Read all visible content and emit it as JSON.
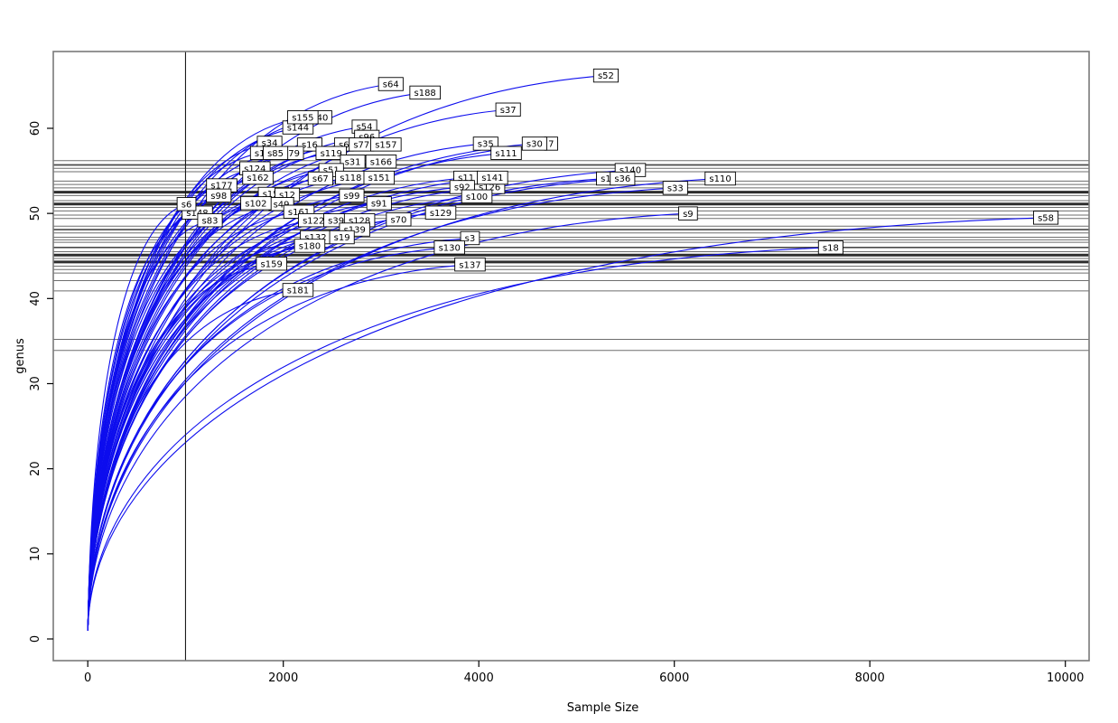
{
  "figure": {
    "background": "#ffffff",
    "curve_color": "#0d0dee",
    "hline_color_light": "#6e6e6e",
    "hline_color_mid": "#4a4a4a",
    "hline_color_dark": "#2e2e2e",
    "box_color": "#7a7a7a",
    "vline_color": "#1a1a1a",
    "label_box_fill": "#ffffff",
    "label_box_border": "#000000"
  },
  "chart_data": {
    "type": "line",
    "title": "",
    "xlabel": "Sample Size",
    "ylabel": "genus",
    "x_ticks": [
      0,
      2000,
      4000,
      6000,
      8000,
      10000
    ],
    "y_ticks": [
      0,
      10,
      20,
      30,
      40,
      50,
      60
    ],
    "xlim": [
      -420,
      10270
    ],
    "ylim": [
      -2.5,
      69
    ],
    "grid": false,
    "legend": "none",
    "vline_x": 1000,
    "curve_start": {
      "x": 1,
      "y": 1
    },
    "note": "Rarefaction curves; each curve starts at (1,1) and ends at its sample size with a boxed sample label. Horizontal gray lines mark rarefied richness at sample size 1000.",
    "hlines": [
      {
        "y": 56.2,
        "w": 1
      },
      {
        "y": 55.7,
        "w": 2
      },
      {
        "y": 55.3,
        "w": 1
      },
      {
        "y": 54.9,
        "w": 1
      },
      {
        "y": 53.8,
        "w": 1
      },
      {
        "y": 53.4,
        "w": 1
      },
      {
        "y": 53.0,
        "w": 1
      },
      {
        "y": 52.5,
        "w": 3
      },
      {
        "y": 52.1,
        "w": 1
      },
      {
        "y": 51.5,
        "w": 1
      },
      {
        "y": 51.1,
        "w": 3
      },
      {
        "y": 50.7,
        "w": 1
      },
      {
        "y": 50.3,
        "w": 1
      },
      {
        "y": 49.8,
        "w": 1
      },
      {
        "y": 49.4,
        "w": 1
      },
      {
        "y": 48.5,
        "w": 1
      },
      {
        "y": 48.1,
        "w": 2
      },
      {
        "y": 47.7,
        "w": 1
      },
      {
        "y": 47.2,
        "w": 1
      },
      {
        "y": 46.9,
        "w": 1
      },
      {
        "y": 46.6,
        "w": 1
      },
      {
        "y": 46.0,
        "w": 2
      },
      {
        "y": 45.5,
        "w": 1
      },
      {
        "y": 45.1,
        "w": 3
      },
      {
        "y": 44.7,
        "w": 1
      },
      {
        "y": 44.3,
        "w": 3
      },
      {
        "y": 43.8,
        "w": 1
      },
      {
        "y": 43.4,
        "w": 1
      },
      {
        "y": 43.0,
        "w": 1
      },
      {
        "y": 42.1,
        "w": 1
      },
      {
        "y": 40.9,
        "w": 1
      },
      {
        "y": 35.2,
        "w": 1
      },
      {
        "y": 33.9,
        "w": 1
      }
    ],
    "samples": [
      {
        "label": "s144",
        "x": 2150,
        "y": 60.1
      },
      {
        "label": "40",
        "x": 2400,
        "y": 61.3
      },
      {
        "label": "s155",
        "x": 2200,
        "y": 61.3
      },
      {
        "label": "s54",
        "x": 2830,
        "y": 60.2
      },
      {
        "label": "s96",
        "x": 2855,
        "y": 59.0
      },
      {
        "label": "s34",
        "x": 1860,
        "y": 58.3
      },
      {
        "label": "s16",
        "x": 2270,
        "y": 58.1
      },
      {
        "label": "s6",
        "x": 2620,
        "y": 58.1
      },
      {
        "label": "s77",
        "x": 2800,
        "y": 58.1
      },
      {
        "label": "s157",
        "x": 3050,
        "y": 58.1
      },
      {
        "label": "7",
        "x": 4740,
        "y": 58.2
      },
      {
        "label": "s30",
        "x": 4570,
        "y": 58.2
      },
      {
        "label": "s35",
        "x": 4070,
        "y": 58.2
      },
      {
        "label": "s111",
        "x": 4280,
        "y": 57.1
      },
      {
        "label": "s1",
        "x": 1760,
        "y": 57.1
      },
      {
        "label": "79",
        "x": 2110,
        "y": 57.1
      },
      {
        "label": "s85",
        "x": 1920,
        "y": 57.1
      },
      {
        "label": "s119",
        "x": 2490,
        "y": 57.1
      },
      {
        "label": "s31",
        "x": 2710,
        "y": 56.1
      },
      {
        "label": "s166",
        "x": 3000,
        "y": 56.1
      },
      {
        "label": "s124",
        "x": 1710,
        "y": 55.3
      },
      {
        "label": "s51",
        "x": 2490,
        "y": 55.1
      },
      {
        "label": "s140",
        "x": 5550,
        "y": 55.1
      },
      {
        "label": "s162",
        "x": 1740,
        "y": 54.2
      },
      {
        "label": "s67",
        "x": 2380,
        "y": 54.1
      },
      {
        "label": "s118",
        "x": 2690,
        "y": 54.2
      },
      {
        "label": "s151",
        "x": 2980,
        "y": 54.2
      },
      {
        "label": "s126",
        "x": 4110,
        "y": 53.1
      },
      {
        "label": "s11",
        "x": 3870,
        "y": 54.2
      },
      {
        "label": "s141",
        "x": 4140,
        "y": 54.2
      },
      {
        "label": "s1",
        "x": 5300,
        "y": 54.1
      },
      {
        "label": "s36",
        "x": 5470,
        "y": 54.1
      },
      {
        "label": "s110",
        "x": 6470,
        "y": 54.1
      },
      {
        "label": "s92",
        "x": 3830,
        "y": 53.1
      },
      {
        "label": "s100",
        "x": 3980,
        "y": 52.0
      },
      {
        "label": "s177",
        "x": 1370,
        "y": 53.3
      },
      {
        "label": "s33",
        "x": 6010,
        "y": 53.0
      },
      {
        "label": "s98",
        "x": 1340,
        "y": 52.1
      },
      {
        "label": "s158",
        "x": 1900,
        "y": 52.3
      },
      {
        "label": "s12",
        "x": 2040,
        "y": 52.2
      },
      {
        "label": "s99",
        "x": 2700,
        "y": 52.1
      },
      {
        "label": "s148",
        "x": 1120,
        "y": 50.1
      },
      {
        "label": "s6",
        "x": 1010,
        "y": 51.1
      },
      {
        "label": "s49",
        "x": 1980,
        "y": 51.1
      },
      {
        "label": "s102",
        "x": 1720,
        "y": 51.2
      },
      {
        "label": "s91",
        "x": 2980,
        "y": 51.2
      },
      {
        "label": "s161",
        "x": 2160,
        "y": 50.2
      },
      {
        "label": "s129",
        "x": 3610,
        "y": 50.1
      },
      {
        "label": "s9",
        "x": 6140,
        "y": 50.0
      },
      {
        "label": "s83",
        "x": 1250,
        "y": 49.2
      },
      {
        "label": "s122",
        "x": 2310,
        "y": 49.2
      },
      {
        "label": "s39",
        "x": 2540,
        "y": 49.2
      },
      {
        "label": "s128",
        "x": 2780,
        "y": 49.2
      },
      {
        "label": "s139",
        "x": 2730,
        "y": 48.1
      },
      {
        "label": "s70",
        "x": 3180,
        "y": 49.3
      },
      {
        "label": "s58",
        "x": 9800,
        "y": 49.5
      },
      {
        "label": "s132",
        "x": 2330,
        "y": 47.2
      },
      {
        "label": "s19",
        "x": 2600,
        "y": 47.2
      },
      {
        "label": "s3",
        "x": 3910,
        "y": 47.1
      },
      {
        "label": "s130",
        "x": 3700,
        "y": 46.0
      },
      {
        "label": "s180",
        "x": 2270,
        "y": 46.2
      },
      {
        "label": "s18",
        "x": 7600,
        "y": 46.0
      },
      {
        "label": "s159",
        "x": 1880,
        "y": 44.1
      },
      {
        "label": "s137",
        "x": 3910,
        "y": 44.0
      },
      {
        "label": "s181",
        "x": 2150,
        "y": 41.0
      },
      {
        "label": "s52",
        "x": 5300,
        "y": 66.2
      },
      {
        "label": "s64",
        "x": 3100,
        "y": 65.2
      },
      {
        "label": "s188",
        "x": 3450,
        "y": 64.2
      },
      {
        "label": "s37",
        "x": 4300,
        "y": 62.2
      }
    ]
  }
}
